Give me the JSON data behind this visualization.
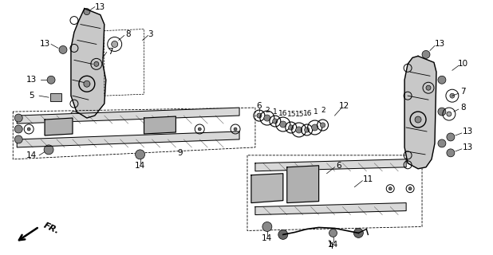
{
  "bg_color": "#ffffff",
  "line_color": "#000000",
  "font_size": 7.5
}
